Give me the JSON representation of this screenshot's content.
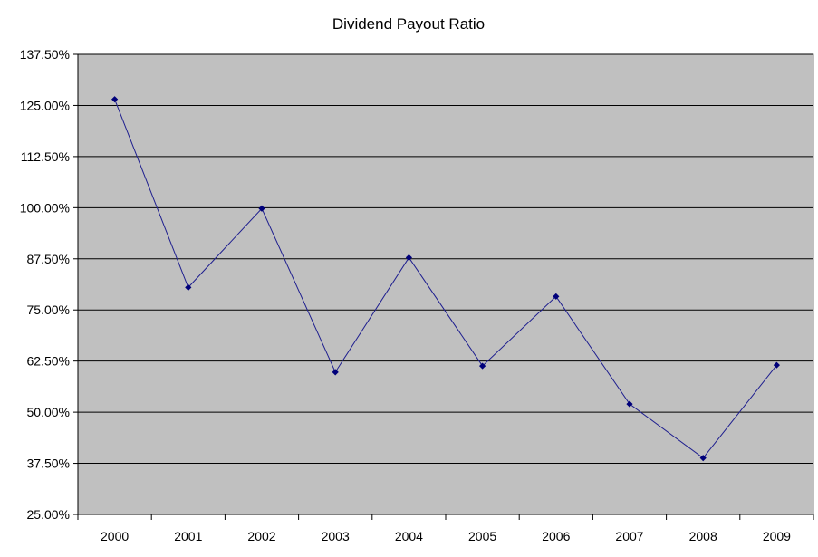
{
  "chart_data": {
    "type": "line",
    "title": "Dividend Payout Ratio",
    "xlabel": "",
    "ylabel": "",
    "categories": [
      "2000",
      "2001",
      "2002",
      "2003",
      "2004",
      "2005",
      "2006",
      "2007",
      "2008",
      "2009"
    ],
    "series": [
      {
        "values": [
          126.5,
          80.5,
          99.8,
          59.8,
          87.8,
          61.3,
          78.3,
          52.0,
          38.8,
          61.5
        ]
      }
    ],
    "ylim": [
      25,
      137.5
    ],
    "yticks": [
      25,
      37.5,
      50,
      62.5,
      75,
      87.5,
      100,
      112.5,
      125,
      137.5
    ],
    "ytick_labels": [
      "25.00%",
      "37.50%",
      "50.00%",
      "62.50%",
      "75.00%",
      "87.50%",
      "100.00%",
      "112.50%",
      "125.00%",
      "137.50%"
    ],
    "grid": true,
    "legend": "none",
    "colors": {
      "plot_background": "#c0c0c0",
      "line": "#1f1f8f",
      "marker": "#00007a",
      "gridline": "#000000"
    }
  }
}
